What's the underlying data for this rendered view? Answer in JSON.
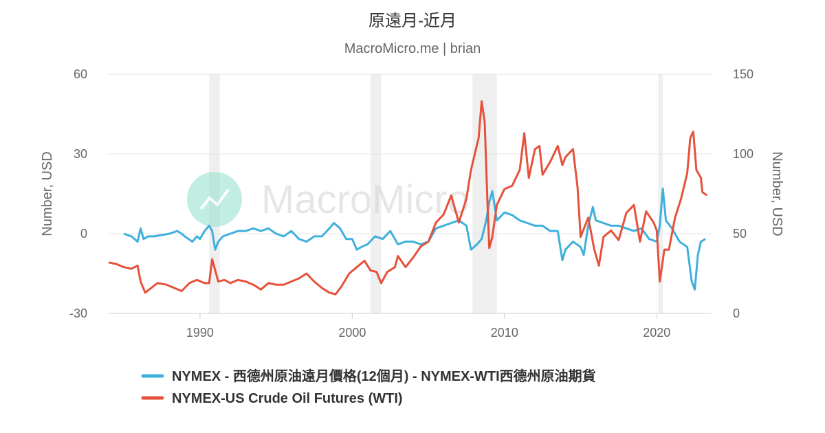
{
  "chart_data": {
    "type": "line",
    "title": "原遠月-近月",
    "subtitle": "MacroMicro.me | brian",
    "watermark": "MacroMicro",
    "y_left": {
      "label": "Number, USD",
      "ticks": [
        60,
        30,
        0,
        -30
      ],
      "range": [
        -30,
        60
      ]
    },
    "y_right": {
      "label": "Number, USD",
      "ticks": [
        150,
        100,
        50,
        0
      ],
      "range": [
        0,
        150
      ]
    },
    "x_ticks": [
      1990,
      2000,
      2010,
      2020
    ],
    "x_range": [
      1984.0,
      2023.6
    ],
    "recession_bands": [
      [
        1990.6,
        1991.3
      ],
      [
        2001.2,
        2001.9
      ],
      [
        2007.9,
        2009.5
      ],
      [
        2020.1,
        2020.4
      ]
    ],
    "grid": true,
    "legend_position": "bottom",
    "series": [
      {
        "name": "NYMEX - 西德州原油遠月價格(12個月) - NYMEX-WTI西德州原油期貨",
        "axis": "left",
        "color": "#3fb0dc",
        "points": [
          [
            1985.0,
            0
          ],
          [
            1985.5,
            -1
          ],
          [
            1985.9,
            -3
          ],
          [
            1986.1,
            2
          ],
          [
            1986.3,
            -2
          ],
          [
            1986.6,
            -1
          ],
          [
            1987.0,
            -1
          ],
          [
            1987.5,
            -0.5
          ],
          [
            1988.0,
            0
          ],
          [
            1988.5,
            1
          ],
          [
            1988.8,
            0
          ],
          [
            1989.0,
            -1
          ],
          [
            1989.5,
            -3
          ],
          [
            1989.8,
            -1
          ],
          [
            1990.0,
            -2
          ],
          [
            1990.3,
            1
          ],
          [
            1990.6,
            3
          ],
          [
            1990.8,
            1
          ],
          [
            1991.0,
            -6
          ],
          [
            1991.2,
            -3
          ],
          [
            1991.5,
            -1
          ],
          [
            1992.0,
            0
          ],
          [
            1992.5,
            1
          ],
          [
            1993.0,
            1
          ],
          [
            1993.5,
            2
          ],
          [
            1994.0,
            1
          ],
          [
            1994.5,
            2
          ],
          [
            1995.0,
            0
          ],
          [
            1995.5,
            -1
          ],
          [
            1996.0,
            1
          ],
          [
            1996.5,
            -2
          ],
          [
            1997.0,
            -3
          ],
          [
            1997.5,
            -1
          ],
          [
            1998.0,
            -1
          ],
          [
            1998.5,
            2
          ],
          [
            1998.8,
            4
          ],
          [
            1999.2,
            2
          ],
          [
            1999.6,
            -2
          ],
          [
            2000.0,
            -2
          ],
          [
            2000.3,
            -6
          ],
          [
            2000.6,
            -5
          ],
          [
            2001.0,
            -4
          ],
          [
            2001.5,
            -1
          ],
          [
            2002.0,
            -2
          ],
          [
            2002.5,
            1
          ],
          [
            2003.0,
            -4
          ],
          [
            2003.5,
            -3
          ],
          [
            2004.0,
            -3
          ],
          [
            2004.5,
            -4
          ],
          [
            2005.0,
            -3
          ],
          [
            2005.5,
            2
          ],
          [
            2006.0,
            3
          ],
          [
            2006.5,
            4
          ],
          [
            2007.0,
            5
          ],
          [
            2007.5,
            3
          ],
          [
            2007.8,
            -6
          ],
          [
            2008.2,
            -4
          ],
          [
            2008.5,
            -2
          ],
          [
            2008.8,
            5
          ],
          [
            2009.0,
            12
          ],
          [
            2009.2,
            16
          ],
          [
            2009.5,
            5
          ],
          [
            2010.0,
            8
          ],
          [
            2010.5,
            7
          ],
          [
            2011.0,
            5
          ],
          [
            2011.5,
            4
          ],
          [
            2012.0,
            3
          ],
          [
            2012.5,
            3
          ],
          [
            2013.0,
            1
          ],
          [
            2013.5,
            1
          ],
          [
            2013.8,
            -10
          ],
          [
            2014.0,
            -6
          ],
          [
            2014.5,
            -3
          ],
          [
            2015.0,
            -5
          ],
          [
            2015.2,
            -8
          ],
          [
            2015.5,
            3
          ],
          [
            2015.8,
            10
          ],
          [
            2016.0,
            5
          ],
          [
            2016.5,
            4
          ],
          [
            2017.0,
            3
          ],
          [
            2017.5,
            3
          ],
          [
            2018.0,
            2
          ],
          [
            2018.5,
            1
          ],
          [
            2019.0,
            2
          ],
          [
            2019.5,
            -2
          ],
          [
            2020.0,
            -3
          ],
          [
            2020.2,
            3
          ],
          [
            2020.4,
            17
          ],
          [
            2020.6,
            5
          ],
          [
            2021.0,
            2
          ],
          [
            2021.5,
            -3
          ],
          [
            2022.0,
            -5
          ],
          [
            2022.3,
            -18
          ],
          [
            2022.5,
            -21
          ],
          [
            2022.7,
            -8
          ],
          [
            2022.9,
            -3
          ],
          [
            2023.2,
            -2
          ]
        ]
      },
      {
        "name": "NYMEX-US Crude Oil Futures (WTI)",
        "axis": "right",
        "color": "#e6513b",
        "points": [
          [
            1984.0,
            32
          ],
          [
            1984.5,
            31
          ],
          [
            1985.0,
            29
          ],
          [
            1985.5,
            28
          ],
          [
            1985.9,
            30
          ],
          [
            1986.1,
            20
          ],
          [
            1986.4,
            13
          ],
          [
            1986.8,
            16
          ],
          [
            1987.2,
            19
          ],
          [
            1987.8,
            18
          ],
          [
            1988.3,
            16
          ],
          [
            1988.8,
            14
          ],
          [
            1989.3,
            19
          ],
          [
            1989.8,
            21
          ],
          [
            1990.3,
            19
          ],
          [
            1990.6,
            19
          ],
          [
            1990.8,
            34
          ],
          [
            1991.0,
            27
          ],
          [
            1991.2,
            20
          ],
          [
            1991.6,
            21
          ],
          [
            1992.0,
            19
          ],
          [
            1992.5,
            21
          ],
          [
            1993.0,
            20
          ],
          [
            1993.5,
            18
          ],
          [
            1994.0,
            15
          ],
          [
            1994.5,
            19
          ],
          [
            1995.0,
            18
          ],
          [
            1995.5,
            18
          ],
          [
            1996.0,
            20
          ],
          [
            1996.5,
            22
          ],
          [
            1997.0,
            25
          ],
          [
            1997.5,
            20
          ],
          [
            1998.0,
            16
          ],
          [
            1998.5,
            13
          ],
          [
            1998.9,
            12
          ],
          [
            1999.3,
            17
          ],
          [
            1999.8,
            25
          ],
          [
            2000.3,
            29
          ],
          [
            2000.8,
            33
          ],
          [
            2001.2,
            27
          ],
          [
            2001.6,
            26
          ],
          [
            2001.9,
            19
          ],
          [
            2002.3,
            26
          ],
          [
            2002.8,
            29
          ],
          [
            2003.0,
            36
          ],
          [
            2003.5,
            29
          ],
          [
            2004.0,
            35
          ],
          [
            2004.5,
            42
          ],
          [
            2005.0,
            45
          ],
          [
            2005.5,
            57
          ],
          [
            2006.0,
            62
          ],
          [
            2006.5,
            74
          ],
          [
            2007.0,
            57
          ],
          [
            2007.5,
            72
          ],
          [
            2007.8,
            90
          ],
          [
            2008.0,
            98
          ],
          [
            2008.3,
            110
          ],
          [
            2008.5,
            133
          ],
          [
            2008.7,
            120
          ],
          [
            2008.9,
            65
          ],
          [
            2009.0,
            41
          ],
          [
            2009.2,
            48
          ],
          [
            2009.5,
            68
          ],
          [
            2010.0,
            78
          ],
          [
            2010.5,
            80
          ],
          [
            2011.0,
            90
          ],
          [
            2011.3,
            113
          ],
          [
            2011.6,
            85
          ],
          [
            2012.0,
            103
          ],
          [
            2012.3,
            105
          ],
          [
            2012.5,
            87
          ],
          [
            2013.0,
            95
          ],
          [
            2013.5,
            105
          ],
          [
            2013.8,
            93
          ],
          [
            2014.0,
            98
          ],
          [
            2014.5,
            103
          ],
          [
            2014.8,
            79
          ],
          [
            2015.0,
            48
          ],
          [
            2015.5,
            60
          ],
          [
            2015.9,
            40
          ],
          [
            2016.2,
            30
          ],
          [
            2016.5,
            48
          ],
          [
            2017.0,
            52
          ],
          [
            2017.5,
            46
          ],
          [
            2018.0,
            63
          ],
          [
            2018.5,
            68
          ],
          [
            2018.9,
            45
          ],
          [
            2019.3,
            64
          ],
          [
            2019.8,
            57
          ],
          [
            2020.0,
            52
          ],
          [
            2020.2,
            20
          ],
          [
            2020.5,
            40
          ],
          [
            2020.8,
            40
          ],
          [
            2021.2,
            60
          ],
          [
            2021.6,
            72
          ],
          [
            2022.0,
            88
          ],
          [
            2022.2,
            110
          ],
          [
            2022.4,
            114
          ],
          [
            2022.6,
            90
          ],
          [
            2022.9,
            85
          ],
          [
            2023.0,
            76
          ],
          [
            2023.3,
            74
          ]
        ]
      }
    ]
  }
}
